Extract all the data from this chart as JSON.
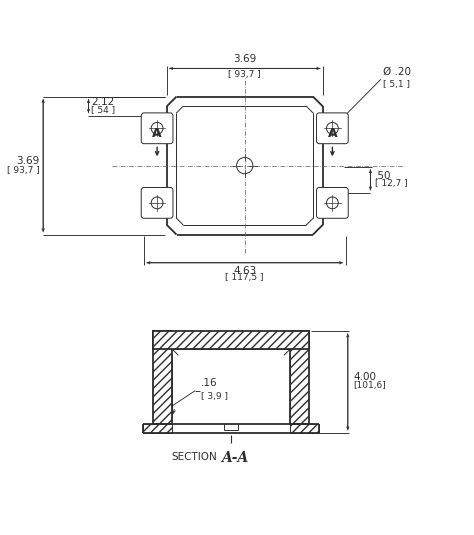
{
  "bg_color": "#ffffff",
  "line_color": "#2d2d2d",
  "dim_color": "#2d2d2d",
  "dims": {
    "top_width_label": "3.69",
    "top_width_metric": "[ 93,7 ]",
    "total_width_label": "4.63",
    "total_width_metric": "[ 117,5 ]",
    "left_height_label": "3.69",
    "left_height_metric": "[ 93,7 ]",
    "ear_offset_label": "2.12",
    "ear_offset_metric": "[ 54 ]",
    "ear_width_label": ".50",
    "ear_width_metric": "[ 12,7 ]",
    "hole_dia_label": "Ø .20",
    "hole_dia_metric": "[ 5,1 ]",
    "section_height_label": "4.00",
    "section_height_metric": "[101,6]",
    "wall_thick_label": ".16",
    "wall_thick_metric": "[ 3,9 ]",
    "section_label": "SECTION",
    "section_aa": "A-A"
  }
}
